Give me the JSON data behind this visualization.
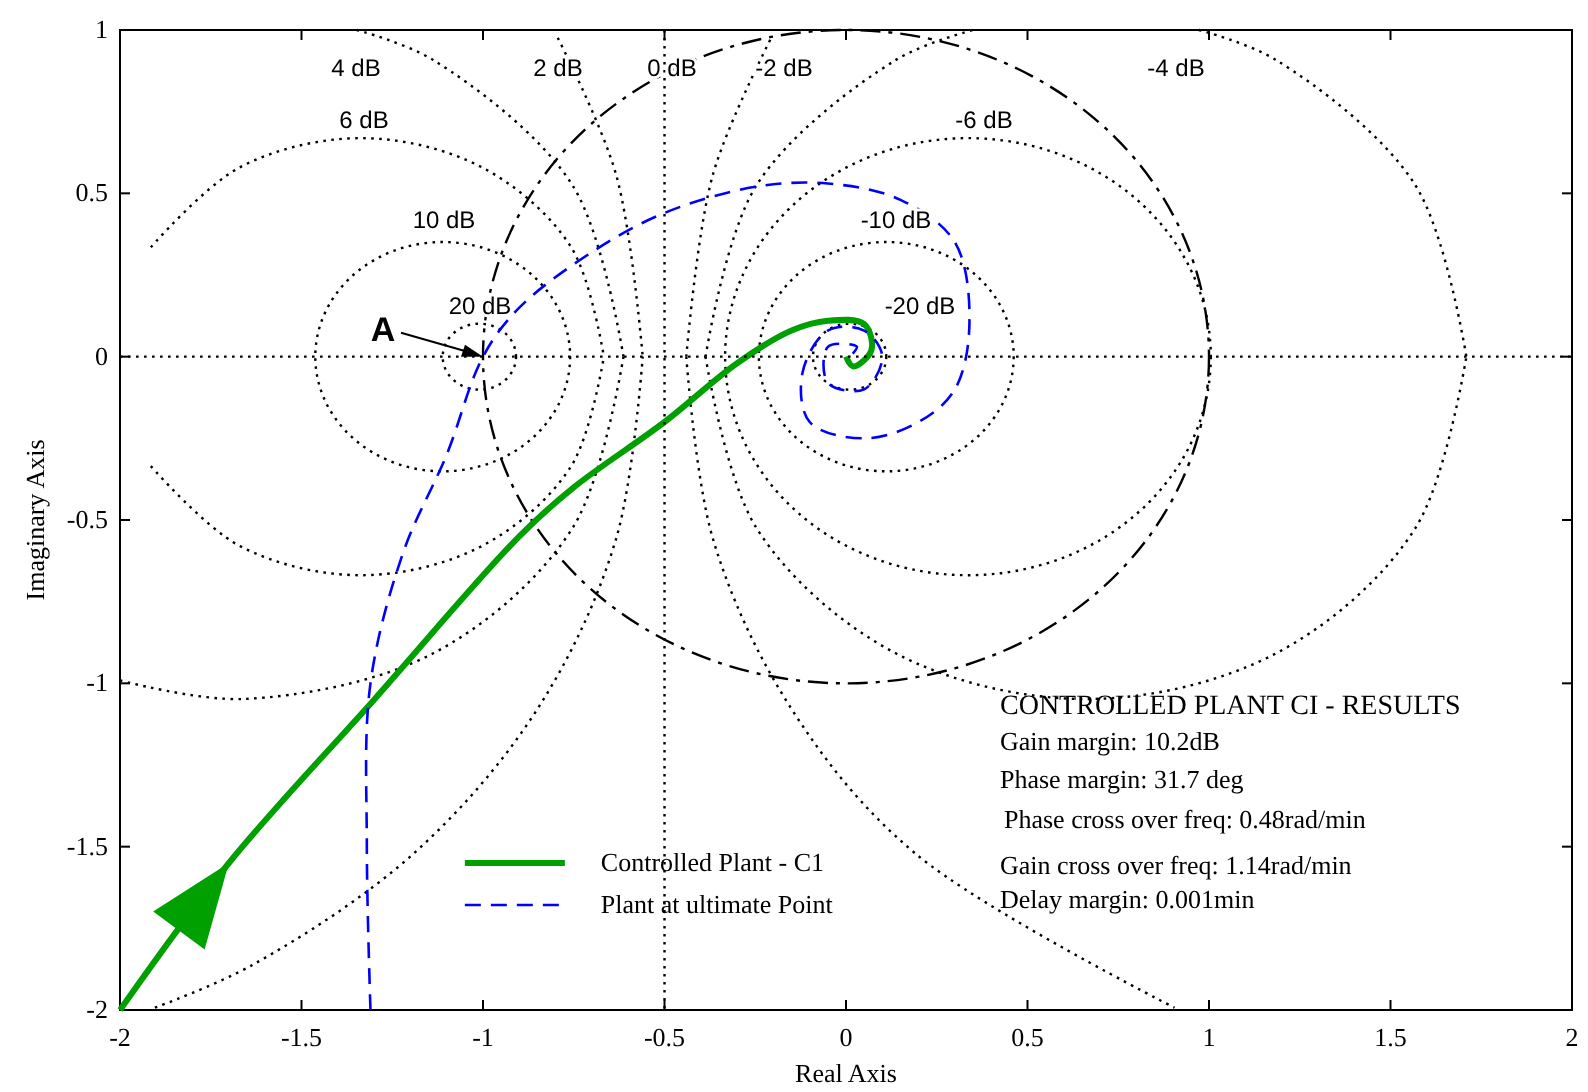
{
  "chart_data": {
    "type": "line",
    "xlabel": "Real Axis",
    "ylabel": "Imaginary Axis",
    "xlim": [
      -2,
      2
    ],
    "xticks": [
      -2,
      -1.5,
      -1,
      -0.5,
      0,
      0.5,
      1,
      1.5,
      2
    ],
    "ylim": [
      -2,
      1
    ],
    "yticks": [
      -2,
      -1.5,
      -1,
      -0.5,
      0,
      0.5,
      1
    ],
    "legend": "bottom",
    "ref_lines": [
      {
        "axis": "y",
        "value": 0,
        "color": "#000000",
        "line_style": "dotted"
      },
      {
        "axis": "x",
        "value": -0.5,
        "color": "#000000",
        "line_style": "dotted"
      }
    ],
    "series": [
      {
        "color": "#000000",
        "line_style": "dotted",
        "x": [
          -1.915,
          -1.671,
          -1.336,
          -1.002,
          -0.757,
          -0.667
        ],
        "values": [
          0.335,
          0.579,
          0.669,
          0.579,
          0.335,
          0
        ]
      },
      {
        "color": "#000000",
        "line_style": "dotted",
        "x": [
          -1.915,
          -1.671,
          -1.336,
          -1.002,
          -0.757,
          -0.667
        ],
        "values": [
          -0.335,
          -0.579,
          -0.669,
          -0.579,
          -0.335,
          0
        ]
      },
      {
        "color": "#000000",
        "line_style": "dotted",
        "x": [
          -1.348,
          -1.137,
          -0.753,
          -0.613
        ],
        "values": [
          1.0,
          0.908,
          0.524,
          0
        ]
      },
      {
        "color": "#000000",
        "line_style": "dotted",
        "x": [
          -2.0,
          -1.661,
          -1.137,
          -0.753,
          -0.613
        ],
        "values": [
          -0.991,
          -1.048,
          -0.908,
          -0.524,
          0
        ]
      },
      {
        "color": "#000000",
        "line_style": "dotted",
        "x": [
          -0.794,
          -0.633,
          -0.56
        ],
        "values": [
          0.976,
          0.556,
          0
        ]
      },
      {
        "color": "#000000",
        "line_style": "dotted",
        "x": [
          -1.904,
          -1.635,
          -1.19,
          -0.848,
          -0.633,
          -0.56
        ],
        "values": [
          -1.993,
          -1.862,
          -1.52,
          -1.075,
          -0.556,
          0
        ]
      },
      {
        "color": "#000000",
        "line_style": "dotted",
        "x": [
          -0.44,
          -0.367,
          -0.206
        ],
        "values": [
          0,
          0.556,
          0.976
        ]
      },
      {
        "color": "#000000",
        "line_style": "dotted",
        "x": [
          -0.44,
          -0.367,
          -0.152,
          0.19,
          0.905
        ],
        "values": [
          0,
          -0.556,
          -1.075,
          -1.52,
          -1.993
        ]
      },
      {
        "color": "#000000",
        "line_style": "dotted",
        "x": [
          -0.387,
          -0.247,
          0.137,
          0.35
        ],
        "values": [
          0,
          0.524,
          0.908,
          1.0
        ]
      },
      {
        "color": "#000000",
        "line_style": "dotted",
        "x": [
          0.972,
          1.185,
          1.569,
          1.709
        ],
        "values": [
          1.0,
          0.908,
          0.524,
          0
        ]
      },
      {
        "color": "#000000",
        "line_style": "dotted",
        "x": [
          -0.387,
          -0.247,
          0.137,
          0.661,
          1.185,
          1.569,
          1.709
        ],
        "values": [
          0,
          -0.524,
          -0.908,
          -1.048,
          -0.908,
          -0.524,
          0
        ]
      },
      {
        "name": "Controlled Plant - C1",
        "color": "#00a000",
        "line_style": "solid",
        "x": [
          -2,
          -1.7,
          -1.3,
          -0.9,
          -0.75,
          -0.5,
          -0.3,
          -0.15,
          -0.05,
          0.05,
          0.07,
          0.02,
          0
        ],
        "values": [
          -2,
          -1.55,
          -1.05,
          -0.55,
          -0.4,
          -0.2,
          -0.02,
          0.08,
          0.11,
          0.1,
          0.02,
          -0.03,
          0
        ]
      },
      {
        "name": "Plant at ultimate Point",
        "color": "#0000ff",
        "line_style": "dashed",
        "x": [
          -1.31,
          -1.32,
          -1.31,
          -1.22,
          -1.1,
          -1.0,
          -0.9,
          -0.7,
          -0.5,
          -0.25,
          -0.05,
          0.15,
          0.3,
          0.34,
          0.3,
          0.2,
          0.05,
          -0.1,
          -0.12,
          -0.05,
          0.05,
          0.1,
          0.05,
          -0.05,
          -0.05,
          0.03,
          0.01
        ],
        "values": [
          -2,
          -1.5,
          -1.0,
          -0.6,
          -0.3,
          0,
          0.15,
          0.32,
          0.44,
          0.52,
          0.53,
          0.48,
          0.35,
          0.1,
          -0.1,
          -0.2,
          -0.25,
          -0.2,
          -0.05,
          0.08,
          0.08,
          0,
          -0.1,
          -0.08,
          0.03,
          0.03,
          0
        ]
      }
    ],
    "annotations": [
      {
        "text": "A",
        "x": -1,
        "y": 0
      },
      "4 dB",
      "2 dB",
      "0 dB",
      "-2 dB",
      "-4 dB",
      "6 dB",
      "-6 dB",
      "10 dB",
      "-10 dB",
      "20 dB",
      "-20 dB",
      "CONTROLLED PLANT CI - RESULTS",
      "Gain margin: 10.2dB",
      "Phase margin: 31.7 deg",
      "Phase cross over freq: 0.48rad/min",
      "Gain cross over freq: 1.14rad/min",
      "Delay margin: 0.001min"
    ]
  }
}
